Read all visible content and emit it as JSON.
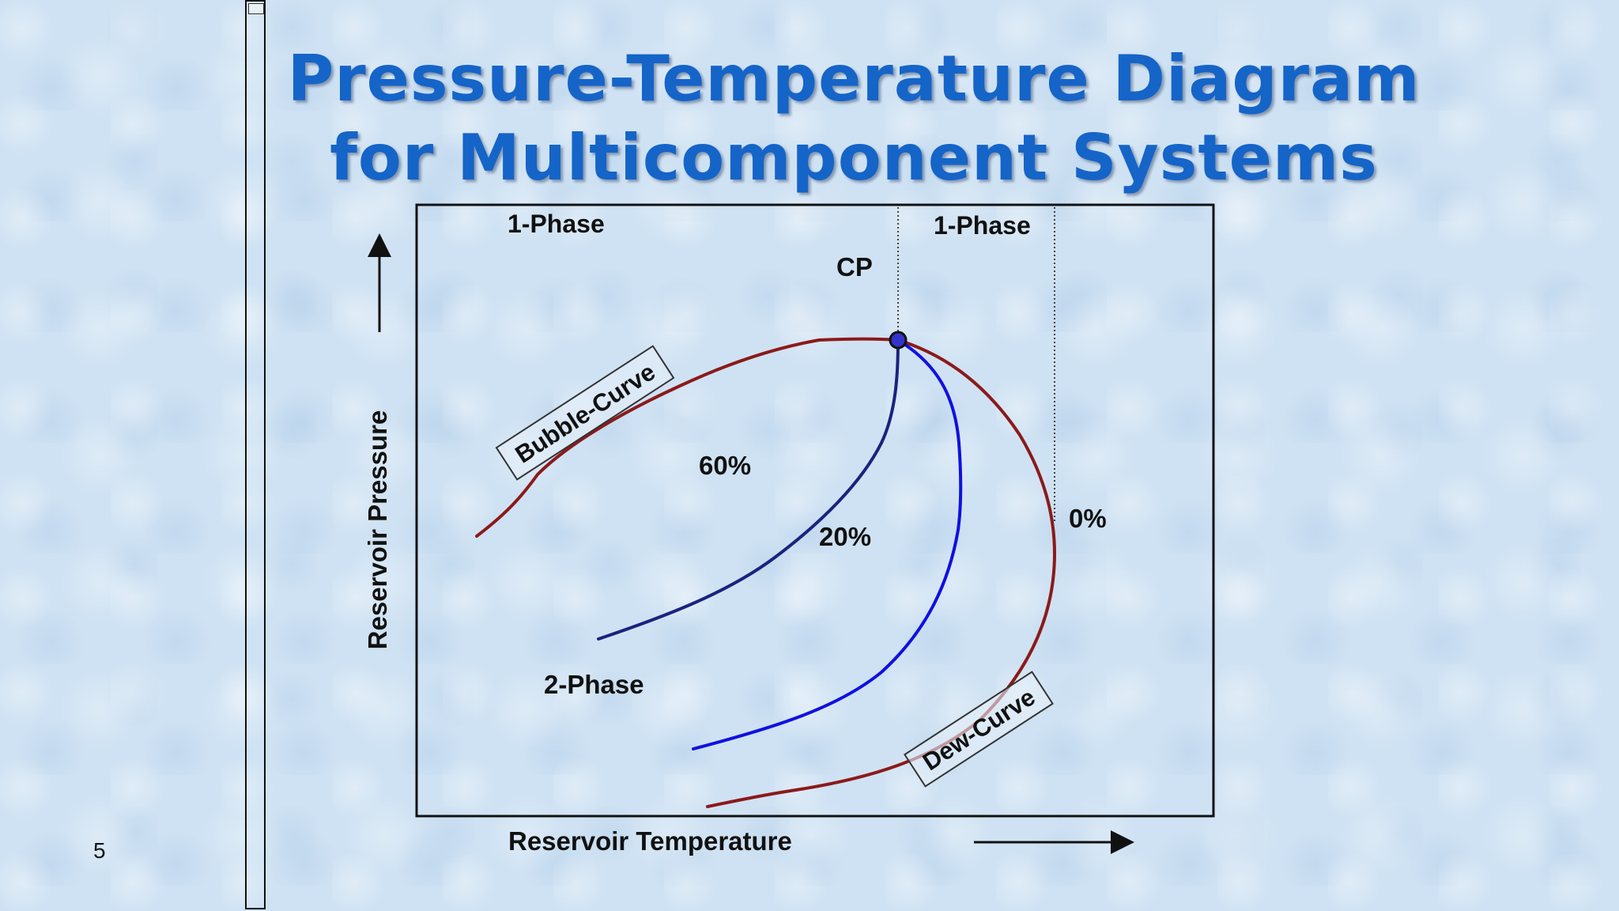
{
  "slide": {
    "title_line1": "Pressure-Temperature Diagram",
    "title_line2": "for Multicomponent Systems",
    "page_number": "5"
  },
  "diagram": {
    "x_axis_label": "Reservoir Temperature",
    "y_axis_label": "Reservoir Pressure",
    "region_labels": {
      "single_phase_left": "1-Phase",
      "single_phase_right": "1-Phase",
      "two_phase": "2-Phase"
    },
    "critical_point_label": "CP",
    "curve_labels": {
      "bubble": "Bubble-Curve",
      "dew": "Dew-Curve"
    },
    "quality_lines": [
      "60%",
      "20%",
      "0%"
    ],
    "colors": {
      "envelope": "#8b1a1a",
      "quality_line_60": "#1a237e",
      "quality_line_20": "#1010e0",
      "critical_point": "#3333cc",
      "title": "#1564c8"
    }
  }
}
